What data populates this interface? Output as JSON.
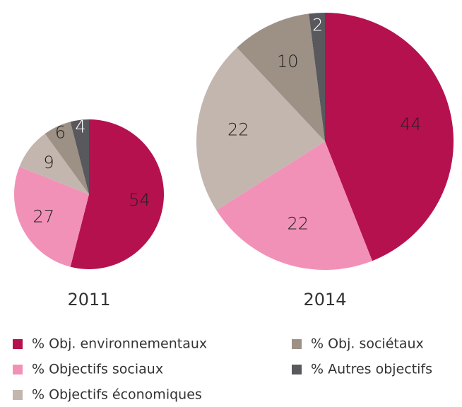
{
  "chart_data": [
    {
      "type": "pie",
      "title": "2011",
      "categories": [
        "% Obj. environnementaux",
        "% Objectifs sociaux",
        "% Objectifs économiques",
        "% Obj. sociétaux",
        "% Autres objectifs"
      ],
      "values": [
        54,
        27,
        9,
        6,
        4
      ],
      "colors": [
        "#b5114f",
        "#f291b7",
        "#c3b6ae",
        "#9d9085",
        "#58585d"
      ]
    },
    {
      "type": "pie",
      "title": "2014",
      "categories": [
        "% Obj. environnementaux",
        "% Objectifs sociaux",
        "% Objectifs économiques",
        "% Obj. sociétaux",
        "% Autres objectifs"
      ],
      "values": [
        44,
        22,
        22,
        10,
        2
      ],
      "colors": [
        "#b5114f",
        "#f291b7",
        "#c3b6ae",
        "#9d9085",
        "#58585d"
      ]
    }
  ]
}
